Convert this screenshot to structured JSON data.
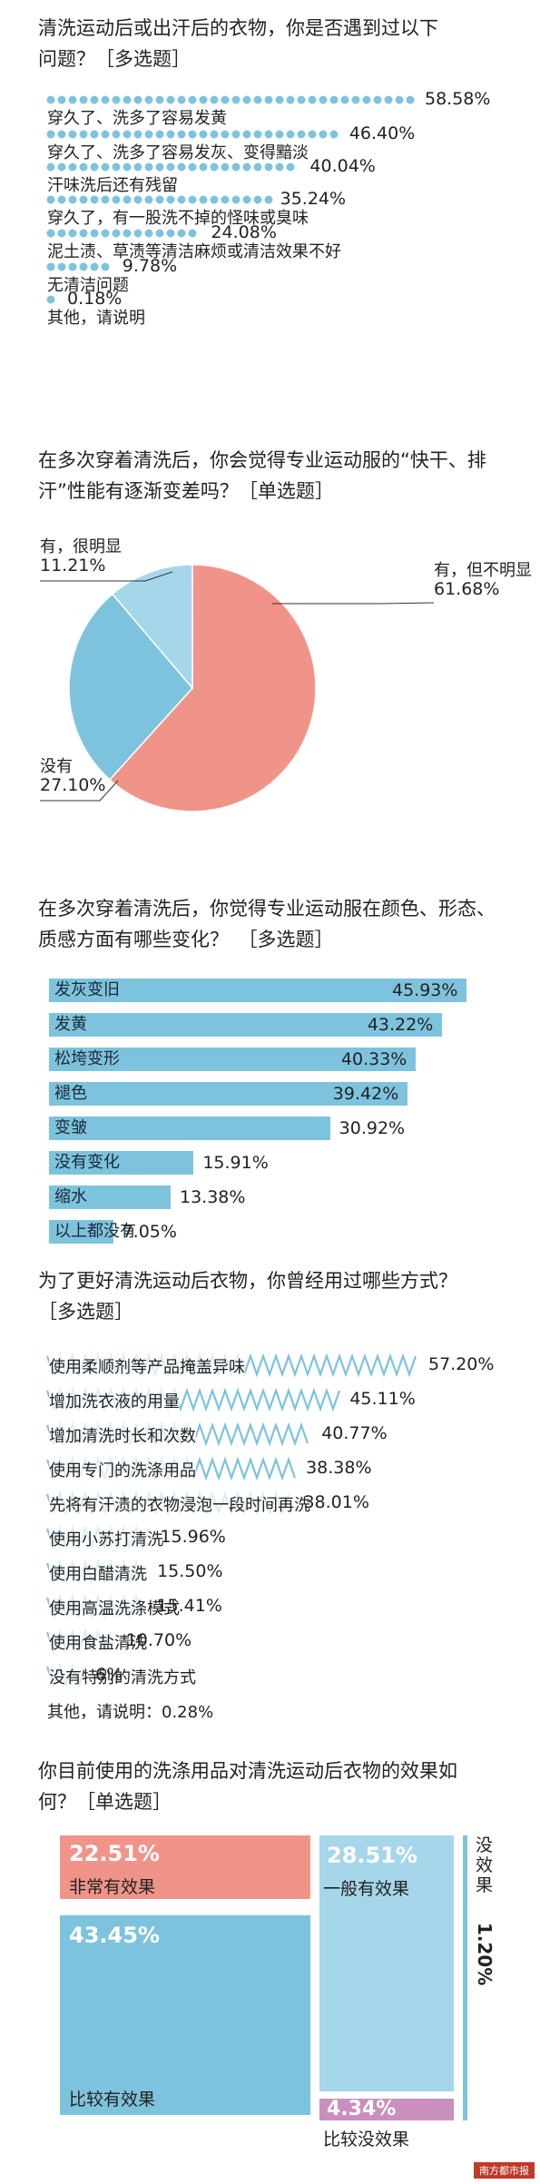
{
  "q1": {
    "title_lines": [
      "清洗运动后或出汗后的衣物，你是否遇到过以下",
      "问题？［多选题］"
    ],
    "items": [
      {
        "label": "穿久了、洗多了容易发黄",
        "value": 58.58,
        "pct": "58.58%"
      },
      {
        "label": "穿久了、洗多了容易发灰、变得黯淡",
        "value": 46.4,
        "pct": "46.40%"
      },
      {
        "label": "汗味洗后还有残留",
        "value": 40.04,
        "pct": "40.04%"
      },
      {
        "label": "穿久了，有一股洗不掉的怪味或臭味",
        "value": 35.24,
        "pct": "35.24%"
      },
      {
        "label": "泥土渍、草渍等清洁麻烦或清洁效果不好",
        "value": 24.08,
        "pct": "24.08%"
      },
      {
        "label": "无清洁问题",
        "value": 9.78,
        "pct": "9.78%"
      },
      {
        "label": "其他，请说明",
        "value": 0.18,
        "pct": "0.18%"
      }
    ],
    "color": "#7ec3de"
  },
  "q2": {
    "title_lines": [
      "在多次穿着清洗后，你会觉得专业运动服的“快干、排",
      "汗”性能有逐渐变差吗？［单选题］"
    ],
    "slices": [
      {
        "label": "有，但不明显",
        "value": 61.68,
        "pct": "61.68%",
        "color": "#f0948a"
      },
      {
        "label": "没有",
        "value": 27.1,
        "pct": "27.10%",
        "color": "#7ec3de"
      },
      {
        "label": "有，很明显",
        "value": 11.21,
        "pct": "11.21%",
        "color": "#a6d6ea"
      }
    ]
  },
  "q3": {
    "title_lines": [
      "在多次穿着清洗后，你觉得专业运动服在颜色、形态、",
      "质感方面有哪些变化？　［多选题］"
    ],
    "items": [
      {
        "label": "发灰变旧",
        "value": 45.93,
        "pct": "45.93%"
      },
      {
        "label": "发黄",
        "value": 43.22,
        "pct": "43.22%"
      },
      {
        "label": "松垮变形",
        "value": 40.33,
        "pct": "40.33%"
      },
      {
        "label": "褪色",
        "value": 39.42,
        "pct": "39.42%"
      },
      {
        "label": "变皱",
        "value": 30.92,
        "pct": "30.92%"
      },
      {
        "label": "没有变化",
        "value": 15.91,
        "pct": "15.91%"
      },
      {
        "label": "缩水",
        "value": 13.38,
        "pct": "13.38%"
      },
      {
        "label": "以上都没有",
        "value": 7.05,
        "pct": "7.05%"
      }
    ],
    "color": "#7ec3de"
  },
  "q4": {
    "title_lines": [
      "为了更好清洗运动后衣物，你曾经用过哪些方式？",
      "［多选题］"
    ],
    "items": [
      {
        "label": "使用柔顺剂等产品掩盖异味",
        "value": 57.2,
        "pct": "57.20%"
      },
      {
        "label": "增加洗衣液的用量",
        "value": 45.11,
        "pct": "45.11%"
      },
      {
        "label": "增加清洗时长和次数",
        "value": 40.77,
        "pct": "40.77%"
      },
      {
        "label": "使用专门的洗涤用品",
        "value": 38.38,
        "pct": "38.38%"
      },
      {
        "label": "先将有汗渍的衣物浸泡一段时间再洗",
        "value": 38.01,
        "pct": "38.01%"
      },
      {
        "label": "使用小苏打清洗",
        "value": 15.96,
        "pct": "15.96%"
      },
      {
        "label": "使用白醋清洗",
        "value": 15.5,
        "pct": "15.50%"
      },
      {
        "label": "使用高温洗涤模式",
        "value": 15.41,
        "pct": "15.41%"
      },
      {
        "label": "使用食盐清洗",
        "value": 10.7,
        "pct": "10.70%"
      },
      {
        "label": "没有特别的清洗方式",
        "value": 6.0,
        "pct": "6%"
      }
    ],
    "other": "其他，请说明：0.28%",
    "color": "#7ec3de"
  },
  "q5": {
    "title_lines": [
      "你目前使用的洗涤用品对清洗运动后衣物的效果如",
      "何？［单选题］"
    ],
    "blocks": [
      {
        "label": "非常有效果",
        "value": 22.51,
        "pct": "22.51%",
        "color": "#f0948a"
      },
      {
        "label": "比较有效果",
        "value": 43.45,
        "pct": "43.45%",
        "color": "#7ec3de"
      },
      {
        "label": "一般有效果",
        "value": 28.51,
        "pct": "28.51%",
        "color": "#a6d6ea"
      },
      {
        "label": "比较没效果",
        "value": 4.34,
        "pct": "4.34%",
        "color": "#c98fbd"
      },
      {
        "label": "没效果",
        "value": 1.2,
        "pct": "1.20%",
        "color": "#7ec3de"
      }
    ]
  },
  "chart_data": [
    {
      "type": "bar",
      "title": "清洗运动后或出汗后的衣物，你是否遇到过以下问题？［多选题］",
      "categories": [
        "穿久了、洗多了容易发黄",
        "穿久了、洗多了容易发灰、变得黯淡",
        "汗味洗后还有残留",
        "穿久了，有一股洗不掉的怪味或臭味",
        "泥土渍、草渍等清洁麻烦或清洁效果不好",
        "无清洁问题",
        "其他，请说明"
      ],
      "values": [
        58.58,
        46.4,
        40.04,
        35.24,
        24.08,
        9.78,
        0.18
      ]
    },
    {
      "type": "pie",
      "title": "在多次穿着清洗后，你会觉得专业运动服的“快干、排汗”性能有逐渐变差吗？［单选题］",
      "categories": [
        "有，但不明显",
        "没有",
        "有，很明显"
      ],
      "values": [
        61.68,
        27.1,
        11.21
      ]
    },
    {
      "type": "bar",
      "title": "在多次穿着清洗后，你觉得专业运动服在颜色、形态、质感方面有哪些变化？　［多选题］",
      "categories": [
        "发灰变旧",
        "发黄",
        "松垮变形",
        "褪色",
        "变皱",
        "没有变化",
        "缩水",
        "以上都没有"
      ],
      "values": [
        45.93,
        43.22,
        40.33,
        39.42,
        30.92,
        15.91,
        13.38,
        7.05
      ]
    },
    {
      "type": "bar",
      "title": "为了更好清洗运动后衣物，你曾经用过哪些方式？［多选题］",
      "categories": [
        "使用柔顺剂等产品掩盖异味",
        "增加洗衣液的用量",
        "增加清洗时长和次数",
        "使用专门的洗涤用品",
        "先将有汗渍的衣物浸泡一段时间再洗",
        "使用小苏打清洗",
        "使用白醋清洗",
        "使用高温洗涤模式",
        "使用食盐清洗",
        "没有特别的清洗方式"
      ],
      "values": [
        57.2,
        45.11,
        40.77,
        38.38,
        38.01,
        15.96,
        15.5,
        15.41,
        10.7,
        6.0
      ]
    },
    {
      "type": "table",
      "title": "你目前使用的洗涤用品对清洗运动后衣物的效果如何？［单选题］",
      "categories": [
        "非常有效果",
        "比较有效果",
        "一般有效果",
        "比较没效果",
        "没效果"
      ],
      "values": [
        22.51,
        43.45,
        28.51,
        4.34,
        1.2
      ]
    }
  ],
  "footer": {
    "logo_text": "南方都市报"
  }
}
